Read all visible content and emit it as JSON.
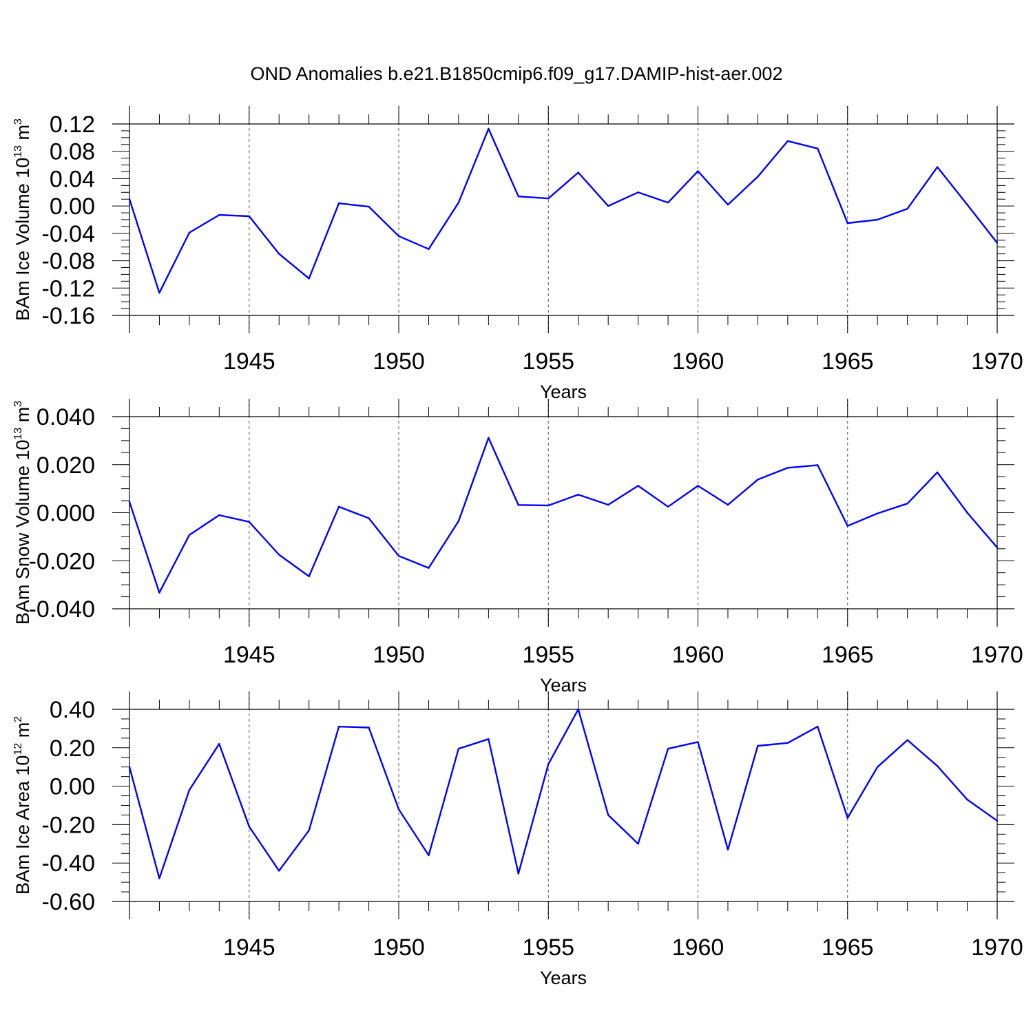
{
  "title": "OND Anomalies b.e21.B1850cmip6.f09_g17.DAMIP-hist-aer.002",
  "colors": {
    "line": "#0000ff",
    "axis": "#000000",
    "grid": "#555555"
  },
  "chart_data": [
    {
      "type": "line",
      "ylabel": {
        "base": "BAm Ice Volume 10",
        "exp": "13",
        "unit": " m",
        "unit_exp": "3"
      },
      "xlabel": "Years",
      "xlim": [
        1941,
        1970
      ],
      "ylim": [
        -0.16,
        0.12
      ],
      "yticks": [
        "0.12",
        "0.08",
        "0.04",
        "0.00",
        "-0.04",
        "-0.08",
        "-0.12",
        "-0.16"
      ],
      "xticks": [
        "1945",
        "1950",
        "1955",
        "1960",
        "1965",
        "1970"
      ],
      "grid": "vertical-dashed",
      "x": [
        1941,
        1942,
        1943,
        1944,
        1945,
        1946,
        1947,
        1948,
        1949,
        1950,
        1951,
        1952,
        1953,
        1954,
        1955,
        1956,
        1957,
        1958,
        1959,
        1960,
        1961,
        1962,
        1963,
        1964,
        1965,
        1966,
        1967,
        1968,
        1969,
        1970
      ],
      "values": [
        0.01,
        -0.127,
        -0.039,
        -0.013,
        -0.015,
        -0.07,
        -0.106,
        0.004,
        -0.001,
        -0.044,
        -0.063,
        0.005,
        0.113,
        0.014,
        0.011,
        0.049,
        0.0,
        0.02,
        0.005,
        0.051,
        0.002,
        0.043,
        0.095,
        0.084,
        -0.025,
        -0.02,
        -0.004,
        0.057,
        0.002,
        -0.054
      ]
    },
    {
      "type": "line",
      "ylabel": {
        "base": "BAm Snow Volume 10",
        "exp": "13",
        "unit": " m",
        "unit_exp": "3"
      },
      "xlabel": "Years",
      "xlim": [
        1941,
        1970
      ],
      "ylim": [
        -0.04,
        0.04
      ],
      "yticks": [
        "0.040",
        "0.020",
        "0.000",
        "-0.020",
        "-0.040"
      ],
      "xticks": [
        "1945",
        "1950",
        "1955",
        "1960",
        "1965",
        "1970"
      ],
      "grid": "vertical-dashed",
      "x": [
        1941,
        1942,
        1943,
        1944,
        1945,
        1946,
        1947,
        1948,
        1949,
        1950,
        1951,
        1952,
        1953,
        1954,
        1955,
        1956,
        1957,
        1958,
        1959,
        1960,
        1961,
        1962,
        1963,
        1964,
        1965,
        1966,
        1967,
        1968,
        1969,
        1970
      ],
      "values": [
        0.0045,
        -0.0333,
        -0.0093,
        -0.001,
        -0.0038,
        -0.0175,
        -0.0265,
        0.0025,
        -0.0023,
        -0.018,
        -0.023,
        -0.0035,
        0.0312,
        0.0032,
        0.003,
        0.0075,
        0.0033,
        0.0112,
        0.0025,
        0.0112,
        0.0033,
        0.0138,
        0.0187,
        0.0198,
        -0.0055,
        -0.0003,
        0.0038,
        0.0168,
        0.0,
        -0.0145
      ]
    },
    {
      "type": "line",
      "ylabel": {
        "base": "BAm Ice Area 10",
        "exp": "12",
        "unit": " m",
        "unit_exp": "2"
      },
      "xlabel": "Years",
      "xlim": [
        1941,
        1970
      ],
      "ylim": [
        -0.6,
        0.4
      ],
      "yticks": [
        "0.40",
        "0.20",
        "0.00",
        "-0.20",
        "-0.40",
        "-0.60"
      ],
      "xticks": [
        "1945",
        "1950",
        "1955",
        "1960",
        "1965",
        "1970"
      ],
      "grid": "vertical-dashed",
      "x": [
        1941,
        1942,
        1943,
        1944,
        1945,
        1946,
        1947,
        1948,
        1949,
        1950,
        1951,
        1952,
        1953,
        1954,
        1955,
        1956,
        1957,
        1958,
        1959,
        1960,
        1961,
        1962,
        1963,
        1964,
        1965,
        1966,
        1967,
        1968,
        1969,
        1970
      ],
      "values": [
        0.1,
        -0.48,
        -0.02,
        0.22,
        -0.21,
        -0.44,
        -0.23,
        0.31,
        0.305,
        -0.12,
        -0.36,
        0.195,
        0.245,
        -0.455,
        0.115,
        0.4,
        -0.15,
        -0.3,
        0.195,
        0.23,
        -0.33,
        0.21,
        0.225,
        0.31,
        -0.165,
        0.1,
        0.24,
        0.105,
        -0.07,
        -0.18
      ]
    }
  ]
}
